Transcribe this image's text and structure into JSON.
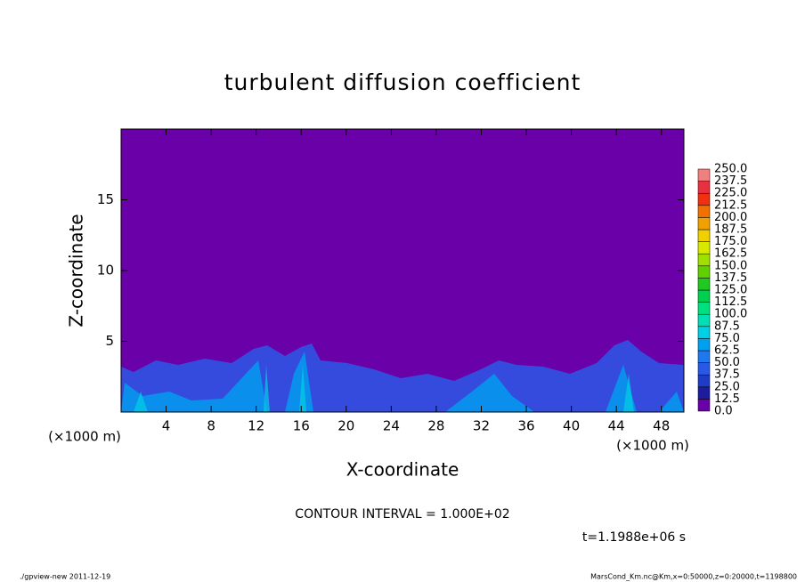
{
  "chart_data": {
    "type": "contour",
    "title": "turbulent diffusion coefficient",
    "xlabel": "X-coordinate",
    "ylabel": "Z-coordinate",
    "xunit": "(×1000 m)",
    "yunit": "(×1000 m)",
    "xlim": [
      0,
      50
    ],
    "xticks": [
      4,
      8,
      12,
      16,
      20,
      24,
      28,
      32,
      36,
      40,
      44,
      48
    ],
    "ylim": [
      0,
      20
    ],
    "yticks": [
      5,
      10,
      15
    ],
    "levels": [
      {
        "value": 0,
        "label": "0.0"
      },
      12.5,
      {
        "value": 25,
        "label": "25.0"
      },
      37.5,
      {
        "value": 50,
        "label": "50.0"
      },
      62.5,
      {
        "value": 75,
        "label": "75.0"
      },
      87.5,
      {
        "value": 100,
        "label": "100.0"
      },
      112.5,
      {
        "value": 125,
        "label": "125.0"
      },
      137.5,
      {
        "value": 150,
        "label": "150.0"
      },
      162.5,
      {
        "value": 175,
        "label": "175.0"
      },
      187.5,
      {
        "value": 200,
        "label": "200.0"
      },
      212.5,
      {
        "value": 225,
        "label": "225.0"
      },
      237.5,
      {
        "value": 250,
        "label": "250.0"
      }
    ],
    "colors": [
      "#6a00a8",
      "#1c1c9c",
      "#1e3cc8",
      "#2a58e6",
      "#1e78f0",
      "#00a0f0",
      "#00d0e6",
      "#00e0b4",
      "#00e080",
      "#00d050",
      "#20c820",
      "#60d000",
      "#a0e000",
      "#d8e800",
      "#f0d000",
      "#f0a000",
      "#f07000",
      "#f03010",
      "#e83040",
      "#f08080"
    ],
    "contour_interval": "CONTOUR INTERVAL = 1.000E+02",
    "time": "t=1.1988e+06 s",
    "footer_left": "./gpview-new   2011-12-19",
    "footer_right": "MarsCond_Km.nc@Km,x=0:50000,z=0:20000,t=1198800"
  }
}
